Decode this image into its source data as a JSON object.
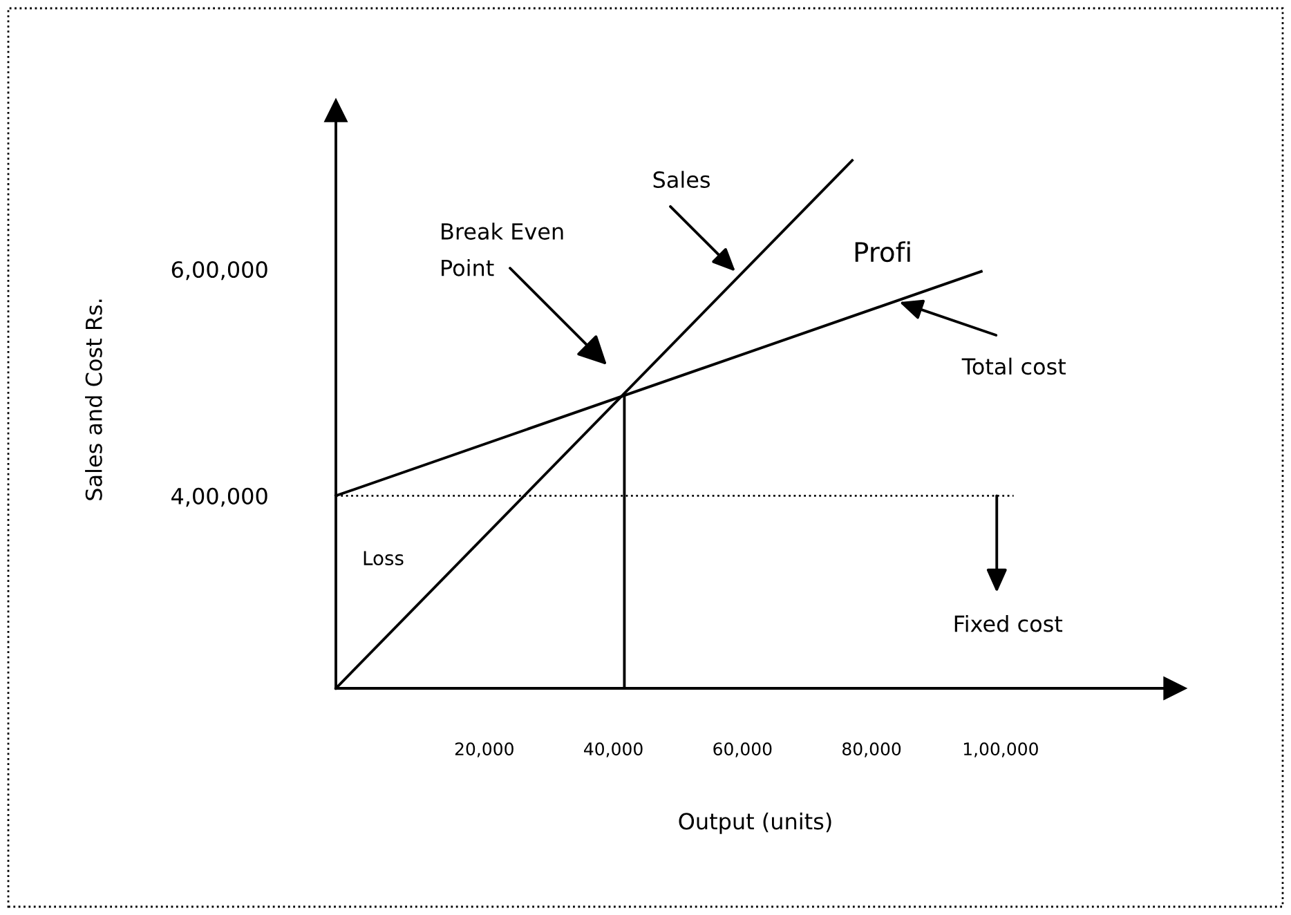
{
  "chart_data": {
    "type": "line",
    "xlabel": "Output (units)",
    "ylabel": "Sales and Cost Rs.",
    "xlim": [
      -3000,
      127000
    ],
    "ylim": [
      230000,
      740000
    ],
    "xticks": [
      {
        "value": 20000,
        "label": "20,000"
      },
      {
        "value": 40000,
        "label": "40,000"
      },
      {
        "value": 60000,
        "label": "60,000"
      },
      {
        "value": 80000,
        "label": "80,000"
      },
      {
        "value": 100000,
        "label": "1,00,000"
      }
    ],
    "yticks": [
      {
        "value": 400000,
        "label": "4,00,000"
      },
      {
        "value": 600000,
        "label": "6,00,000"
      }
    ],
    "series": [
      {
        "color": "#000000",
        "x": [
          -3000,
          77000
        ],
        "values": [
          230000,
          696000
        ],
        "line_style": "solid"
      },
      {
        "color": "#000000",
        "x": [
          -3000,
          97000
        ],
        "values": [
          400000,
          598000
        ],
        "line_style": "solid"
      },
      {
        "color": "#000000",
        "x": [
          -3000,
          102000
        ],
        "values": [
          400000,
          400000
        ],
        "line_style": "dotted"
      },
      {
        "color": "#000000",
        "x": [
          41700,
          41700
        ],
        "values": [
          230000,
          489000
        ],
        "line_style": "solid"
      }
    ],
    "annotations": [
      {
        "text": "Sales",
        "x": 58900,
        "y": 598000
      },
      "Break Even\nPoint",
      {
        "text": "Total cost",
        "x": 84300,
        "y": 571000
      },
      {
        "text": "Fixed cost",
        "x": 99400,
        "y": 400000
      },
      "Profi",
      "Loss"
    ]
  }
}
